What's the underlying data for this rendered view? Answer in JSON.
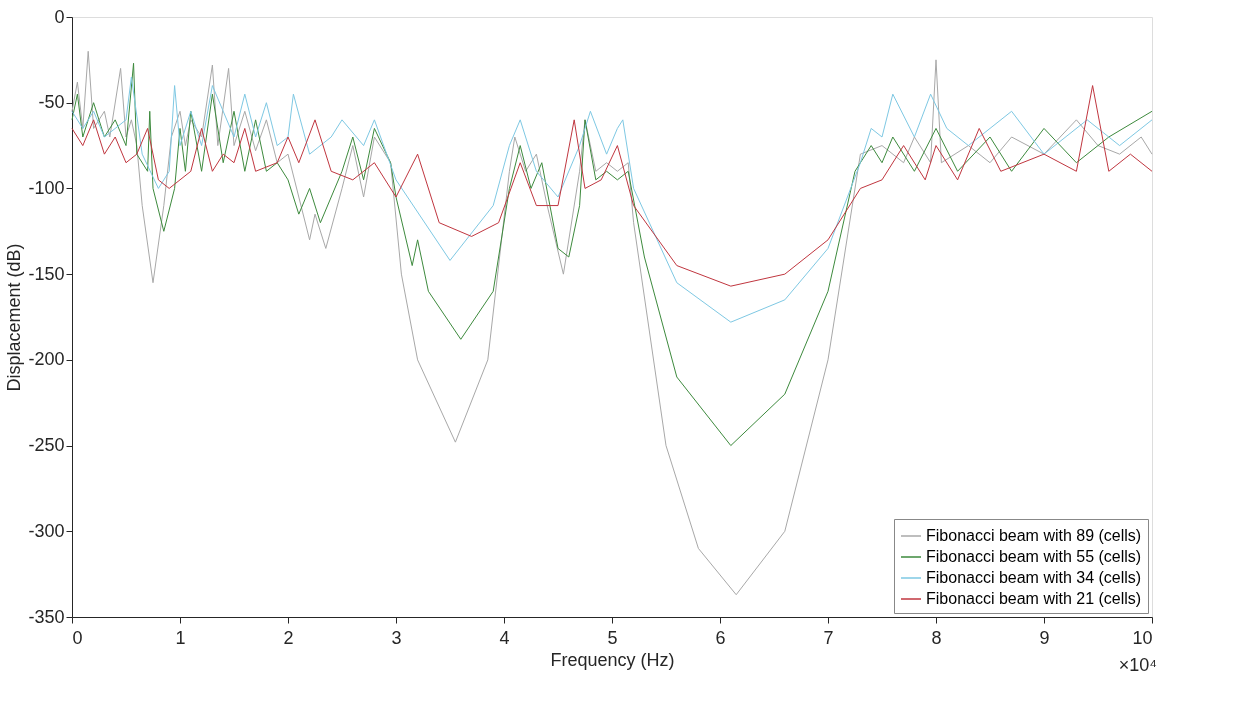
{
  "chart_data": {
    "type": "line",
    "xlabel": "Frequency (Hz)",
    "ylabel": "Displacement (dB)",
    "annotations": [
      "×10⁴"
    ],
    "xlim": [
      0,
      10
    ],
    "ylim": [
      -350,
      0
    ],
    "xticks": [
      0,
      1,
      2,
      3,
      4,
      5,
      6,
      7,
      8,
      9,
      10
    ],
    "yticks": [
      -350,
      -300,
      -250,
      -200,
      -150,
      -100,
      -50,
      0
    ],
    "grid": false,
    "legend": "bottom right",
    "line_style": "solid",
    "series": [
      {
        "name": "Fibonacci beam with 89 (cells)",
        "color": "#a8a8a8",
        "x": [
          0,
          0.05,
          0.1,
          0.15,
          0.2,
          0.3,
          0.35,
          0.45,
          0.5,
          0.55,
          0.6,
          0.65,
          0.75,
          0.85,
          0.92,
          1.0,
          1.05,
          1.1,
          1.2,
          1.3,
          1.35,
          1.45,
          1.5,
          1.6,
          1.7,
          1.8,
          1.9,
          2.0,
          2.1,
          2.2,
          2.25,
          2.35,
          2.5,
          2.6,
          2.7,
          2.8,
          2.95,
          3.05,
          3.2,
          3.55,
          3.85,
          4.05,
          4.1,
          4.2,
          4.3,
          4.4,
          4.55,
          4.7,
          4.75,
          4.85,
          4.95,
          5.05,
          5.15,
          5.2,
          5.5,
          5.8,
          6.15,
          6.6,
          7.0,
          7.3,
          7.5,
          7.7,
          7.8,
          7.95,
          8.0,
          8.05,
          8.3,
          8.5,
          8.7,
          9.0,
          9.3,
          9.5,
          9.7,
          9.9,
          10
        ],
        "values": [
          -55,
          -38,
          -65,
          -20,
          -65,
          -55,
          -70,
          -30,
          -70,
          -60,
          -75,
          -110,
          -155,
          -110,
          -70,
          -55,
          -75,
          -60,
          -70,
          -28,
          -75,
          -30,
          -75,
          -55,
          -78,
          -60,
          -85,
          -80,
          -105,
          -130,
          -115,
          -135,
          -100,
          -75,
          -105,
          -70,
          -85,
          -150,
          -200,
          -248,
          -200,
          -90,
          -70,
          -90,
          -80,
          -110,
          -150,
          -90,
          -60,
          -90,
          -85,
          -90,
          -85,
          -120,
          -250,
          -310,
          -337,
          -300,
          -200,
          -80,
          -75,
          -85,
          -70,
          -85,
          -25,
          -85,
          -75,
          -85,
          -70,
          -80,
          -60,
          -75,
          -80,
          -70,
          -80
        ]
      },
      {
        "name": "Fibonacci beam with 55 (cells)",
        "color": "#3d8a3d",
        "x": [
          0,
          0.05,
          0.1,
          0.2,
          0.3,
          0.4,
          0.5,
          0.57,
          0.6,
          0.7,
          0.72,
          0.75,
          0.85,
          0.95,
          1.0,
          1.05,
          1.1,
          1.2,
          1.3,
          1.4,
          1.5,
          1.6,
          1.7,
          1.8,
          1.9,
          2.0,
          2.1,
          2.2,
          2.3,
          2.5,
          2.6,
          2.7,
          2.8,
          2.95,
          3.0,
          3.15,
          3.2,
          3.3,
          3.6,
          3.9,
          4.05,
          4.15,
          4.25,
          4.35,
          4.5,
          4.6,
          4.7,
          4.75,
          4.85,
          4.95,
          5.05,
          5.15,
          5.3,
          5.6,
          6.1,
          6.6,
          7.0,
          7.25,
          7.4,
          7.5,
          7.6,
          7.8,
          8.0,
          8.2,
          8.5,
          8.7,
          9.0,
          9.3,
          9.6,
          10
        ],
        "values": [
          -60,
          -45,
          -70,
          -50,
          -70,
          -60,
          -75,
          -27,
          -80,
          -90,
          -55,
          -100,
          -125,
          -100,
          -65,
          -90,
          -55,
          -90,
          -45,
          -85,
          -55,
          -90,
          -60,
          -90,
          -85,
          -95,
          -115,
          -100,
          -120,
          -90,
          -70,
          -95,
          -65,
          -85,
          -105,
          -145,
          -130,
          -160,
          -188,
          -160,
          -100,
          -75,
          -100,
          -85,
          -135,
          -140,
          -110,
          -60,
          -95,
          -90,
          -95,
          -90,
          -140,
          -210,
          -250,
          -220,
          -160,
          -90,
          -75,
          -85,
          -70,
          -90,
          -65,
          -90,
          -70,
          -90,
          -65,
          -85,
          -70,
          -55
        ]
      },
      {
        "name": "Fibonacci beam with 34 (cells)",
        "color": "#7ec8e3",
        "x": [
          0,
          0.1,
          0.2,
          0.3,
          0.5,
          0.55,
          0.65,
          0.8,
          0.9,
          0.95,
          1.0,
          1.1,
          1.2,
          1.3,
          1.5,
          1.6,
          1.7,
          1.8,
          1.9,
          2.0,
          2.05,
          2.2,
          2.4,
          2.5,
          2.7,
          2.8,
          3.0,
          3.5,
          3.9,
          4.05,
          4.15,
          4.3,
          4.5,
          4.7,
          4.8,
          4.95,
          5.05,
          5.1,
          5.2,
          5.6,
          6.1,
          6.6,
          7.0,
          7.3,
          7.4,
          7.5,
          7.6,
          7.8,
          7.95,
          8.1,
          8.3,
          8.7,
          9.0,
          9.4,
          9.7,
          10
        ],
        "values": [
          -55,
          -65,
          -55,
          -70,
          -60,
          -35,
          -80,
          -100,
          -90,
          -40,
          -75,
          -55,
          -75,
          -40,
          -70,
          -45,
          -70,
          -50,
          -75,
          -70,
          -45,
          -80,
          -70,
          -60,
          -75,
          -60,
          -95,
          -142,
          -110,
          -75,
          -60,
          -90,
          -105,
          -75,
          -55,
          -80,
          -65,
          -60,
          -100,
          -155,
          -178,
          -165,
          -135,
          -85,
          -65,
          -70,
          -45,
          -70,
          -45,
          -65,
          -75,
          -55,
          -80,
          -60,
          -75,
          -60
        ]
      },
      {
        "name": "Fibonacci beam with 21 (cells)",
        "color": "#c0363f",
        "x": [
          0,
          0.1,
          0.2,
          0.3,
          0.4,
          0.5,
          0.6,
          0.7,
          0.8,
          0.9,
          1.1,
          1.2,
          1.3,
          1.4,
          1.5,
          1.6,
          1.7,
          1.9,
          2.0,
          2.1,
          2.25,
          2.4,
          2.6,
          2.8,
          3.0,
          3.2,
          3.4,
          3.7,
          3.95,
          4.15,
          4.3,
          4.5,
          4.65,
          4.75,
          4.9,
          5.05,
          5.2,
          5.6,
          6.1,
          6.6,
          7.0,
          7.3,
          7.5,
          7.7,
          7.9,
          8.0,
          8.2,
          8.4,
          8.6,
          9.0,
          9.3,
          9.45,
          9.6,
          9.8,
          10
        ],
        "values": [
          -65,
          -75,
          -60,
          -80,
          -70,
          -85,
          -80,
          -65,
          -95,
          -100,
          -90,
          -65,
          -90,
          -80,
          -85,
          -65,
          -90,
          -85,
          -70,
          -85,
          -60,
          -90,
          -95,
          -85,
          -105,
          -80,
          -120,
          -128,
          -120,
          -85,
          -110,
          -110,
          -60,
          -100,
          -95,
          -75,
          -110,
          -145,
          -157,
          -150,
          -130,
          -100,
          -95,
          -75,
          -95,
          -75,
          -95,
          -65,
          -90,
          -80,
          -90,
          -40,
          -90,
          -80,
          -90
        ]
      }
    ]
  }
}
